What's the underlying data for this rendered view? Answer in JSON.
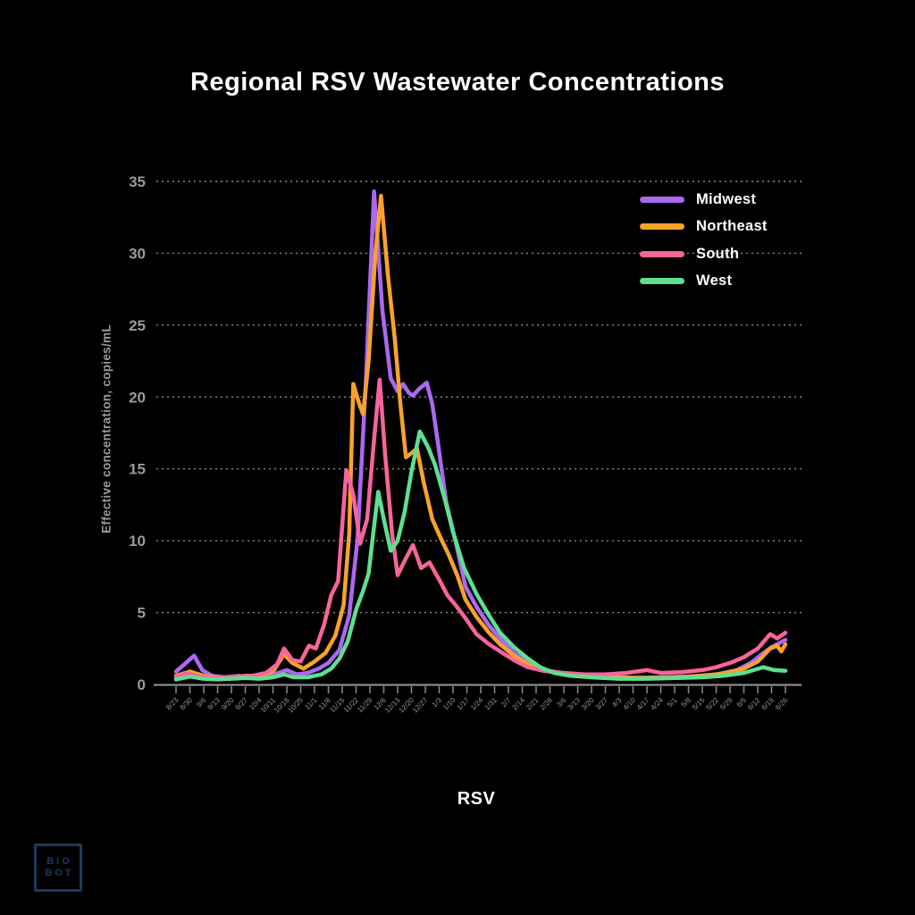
{
  "chart_data": {
    "type": "line",
    "title": "Regional RSV Wastewater Concentrations",
    "xlabel": "RSV",
    "ylabel": "Effective concentration, copies/mL",
    "ylim": [
      0,
      35
    ],
    "y_ticks": [
      0,
      5,
      10,
      15,
      20,
      25,
      30,
      35
    ],
    "grid": "horizontal-dashed",
    "legend_position": "top-right",
    "x_tick_labels": [
      "8/23",
      "8/30",
      "9/6",
      "9/13",
      "9/20",
      "9/27",
      "10/4",
      "10/11",
      "10/18",
      "10/25",
      "11/1",
      "11/8",
      "11/15",
      "11/22",
      "11/29",
      "12/6",
      "12/13",
      "12/20",
      "12/27",
      "1/3",
      "1/10",
      "1/17",
      "1/24",
      "1/31",
      "2/7",
      "2/14",
      "2/21",
      "2/28",
      "3/6",
      "3/13",
      "3/20",
      "3/27",
      "4/3",
      "4/10",
      "4/17",
      "4/24",
      "5/1",
      "5/8",
      "5/15",
      "5/22",
      "5/29",
      "6/5",
      "6/12",
      "6/19",
      "6/26"
    ],
    "series": [
      {
        "name": "Midwest",
        "color": "#ab68f0",
        "points": [
          [
            0,
            0.9
          ],
          [
            0.6,
            1.4
          ],
          [
            1.3,
            2.0
          ],
          [
            1.9,
            1.0
          ],
          [
            2.6,
            0.6
          ],
          [
            3.5,
            0.5
          ],
          [
            4.5,
            0.6
          ],
          [
            5.5,
            0.5
          ],
          [
            6.5,
            0.6
          ],
          [
            7.4,
            0.8
          ],
          [
            8,
            1.0
          ],
          [
            8.7,
            0.7
          ],
          [
            9.5,
            0.8
          ],
          [
            10.3,
            1.1
          ],
          [
            11,
            1.5
          ],
          [
            11.8,
            2.4
          ],
          [
            12.5,
            4.8
          ],
          [
            13.1,
            10
          ],
          [
            13.7,
            21
          ],
          [
            14.3,
            34.3
          ],
          [
            14.9,
            26
          ],
          [
            15.5,
            21.3
          ],
          [
            16,
            20.4
          ],
          [
            16.4,
            20.9
          ],
          [
            16.8,
            20.3
          ],
          [
            17.1,
            20.1
          ],
          [
            17.6,
            20.6
          ],
          [
            18.1,
            21.0
          ],
          [
            18.5,
            19.5
          ],
          [
            18.9,
            16.9
          ],
          [
            19.5,
            12.7
          ],
          [
            20.2,
            9.9
          ],
          [
            20.9,
            6.8
          ],
          [
            21.7,
            5.4
          ],
          [
            22.6,
            4.1
          ],
          [
            23.4,
            3.2
          ],
          [
            24.4,
            2.2
          ],
          [
            25.3,
            1.6
          ],
          [
            26.2,
            1.1
          ],
          [
            27.5,
            0.85
          ],
          [
            29,
            0.7
          ],
          [
            31,
            0.55
          ],
          [
            33,
            0.45
          ],
          [
            35,
            0.5
          ],
          [
            37,
            0.55
          ],
          [
            39,
            0.7
          ],
          [
            40.5,
            1.0
          ],
          [
            41.5,
            1.5
          ],
          [
            42.3,
            2.1
          ],
          [
            43,
            2.6
          ],
          [
            43.6,
            2.9
          ],
          [
            44,
            3.1
          ]
        ]
      },
      {
        "name": "Northeast",
        "color": "#f9a22b",
        "points": [
          [
            0,
            0.6
          ],
          [
            1,
            0.9
          ],
          [
            2,
            0.6
          ],
          [
            3,
            0.5
          ],
          [
            4,
            0.5
          ],
          [
            5,
            0.6
          ],
          [
            6,
            0.6
          ],
          [
            7,
            0.9
          ],
          [
            7.8,
            2.1
          ],
          [
            8.4,
            1.5
          ],
          [
            9.2,
            1.1
          ],
          [
            10,
            1.6
          ],
          [
            10.8,
            2.2
          ],
          [
            11.5,
            3.4
          ],
          [
            12.1,
            5.5
          ],
          [
            12.5,
            10.5
          ],
          [
            12.8,
            20.9
          ],
          [
            13.2,
            19.6
          ],
          [
            13.5,
            18.8
          ],
          [
            13.9,
            22.5
          ],
          [
            14.4,
            30
          ],
          [
            14.8,
            34.0
          ],
          [
            15.3,
            28.5
          ],
          [
            15.8,
            24
          ],
          [
            16.2,
            19.5
          ],
          [
            16.6,
            15.8
          ],
          [
            17,
            16.1
          ],
          [
            17.4,
            16.4
          ],
          [
            17.9,
            14
          ],
          [
            18.5,
            11.5
          ],
          [
            19.1,
            10.2
          ],
          [
            19.7,
            9
          ],
          [
            20.3,
            7.6
          ],
          [
            20.9,
            5.9
          ],
          [
            21.7,
            4.7
          ],
          [
            22.6,
            3.6
          ],
          [
            23.4,
            2.8
          ],
          [
            24.4,
            2.0
          ],
          [
            25.4,
            1.4
          ],
          [
            26.5,
            1.0
          ],
          [
            28,
            0.7
          ],
          [
            30,
            0.6
          ],
          [
            32,
            0.5
          ],
          [
            34,
            0.45
          ],
          [
            36,
            0.5
          ],
          [
            38,
            0.6
          ],
          [
            39.5,
            0.75
          ],
          [
            41,
            1.1
          ],
          [
            42,
            1.6
          ],
          [
            42.9,
            2.5
          ],
          [
            43.4,
            2.7
          ],
          [
            43.7,
            2.3
          ],
          [
            44,
            2.8
          ]
        ]
      },
      {
        "name": "South",
        "color": "#f7649c",
        "points": [
          [
            0,
            0.5
          ],
          [
            0.8,
            0.8
          ],
          [
            1.5,
            0.6
          ],
          [
            2.5,
            0.45
          ],
          [
            3.5,
            0.5
          ],
          [
            4.5,
            0.55
          ],
          [
            5.5,
            0.6
          ],
          [
            6.5,
            0.8
          ],
          [
            7.3,
            1.4
          ],
          [
            7.8,
            2.5
          ],
          [
            8.4,
            1.7
          ],
          [
            9,
            1.6
          ],
          [
            9.6,
            2.7
          ],
          [
            10.1,
            2.5
          ],
          [
            10.7,
            4.2
          ],
          [
            11.2,
            6.2
          ],
          [
            11.7,
            7.2
          ],
          [
            12.3,
            14.9
          ],
          [
            12.8,
            13.2
          ],
          [
            13.3,
            9.8
          ],
          [
            13.8,
            11.5
          ],
          [
            14.3,
            17
          ],
          [
            14.7,
            21.2
          ],
          [
            15.1,
            16
          ],
          [
            15.6,
            10.5
          ],
          [
            16,
            7.6
          ],
          [
            16.5,
            8.6
          ],
          [
            17.1,
            9.7
          ],
          [
            17.7,
            8.1
          ],
          [
            18.3,
            8.5
          ],
          [
            18.7,
            7.8
          ],
          [
            19,
            7.3
          ],
          [
            19.6,
            6.2
          ],
          [
            20.2,
            5.5
          ],
          [
            20.9,
            4.6
          ],
          [
            21.7,
            3.5
          ],
          [
            22.6,
            2.8
          ],
          [
            23.4,
            2.3
          ],
          [
            24.4,
            1.7
          ],
          [
            25.4,
            1.2
          ],
          [
            26.5,
            0.95
          ],
          [
            28,
            0.8
          ],
          [
            29.5,
            0.7
          ],
          [
            31,
            0.7
          ],
          [
            32.5,
            0.8
          ],
          [
            34,
            1.0
          ],
          [
            35,
            0.8
          ],
          [
            36.5,
            0.85
          ],
          [
            38,
            1.0
          ],
          [
            39,
            1.2
          ],
          [
            40,
            1.5
          ],
          [
            41,
            1.9
          ],
          [
            42,
            2.5
          ],
          [
            42.9,
            3.5
          ],
          [
            43.4,
            3.2
          ],
          [
            44,
            3.6
          ]
        ]
      },
      {
        "name": "West",
        "color": "#5fdf90",
        "points": [
          [
            0,
            0.35
          ],
          [
            1,
            0.55
          ],
          [
            2,
            0.4
          ],
          [
            3,
            0.35
          ],
          [
            4,
            0.4
          ],
          [
            5,
            0.45
          ],
          [
            6,
            0.4
          ],
          [
            7,
            0.5
          ],
          [
            7.8,
            0.7
          ],
          [
            8.5,
            0.5
          ],
          [
            9.5,
            0.5
          ],
          [
            10.5,
            0.7
          ],
          [
            11.2,
            1.1
          ],
          [
            11.8,
            1.8
          ],
          [
            12.4,
            3.0
          ],
          [
            13,
            5.2
          ],
          [
            13.5,
            6.5
          ],
          [
            13.9,
            7.7
          ],
          [
            14.3,
            11
          ],
          [
            14.6,
            13.4
          ],
          [
            15,
            11.5
          ],
          [
            15.5,
            9.3
          ],
          [
            16,
            10
          ],
          [
            16.5,
            12
          ],
          [
            17,
            14.8
          ],
          [
            17.6,
            17.6
          ],
          [
            18.2,
            16.5
          ],
          [
            18.7,
            15.3
          ],
          [
            19.4,
            12.9
          ],
          [
            20,
            10.6
          ],
          [
            20.8,
            8.1
          ],
          [
            21.7,
            6.3
          ],
          [
            22.6,
            4.8
          ],
          [
            23.4,
            3.6
          ],
          [
            24.4,
            2.6
          ],
          [
            25.4,
            1.8
          ],
          [
            26.3,
            1.2
          ],
          [
            27.3,
            0.8
          ],
          [
            28.5,
            0.6
          ],
          [
            30,
            0.5
          ],
          [
            32,
            0.4
          ],
          [
            34,
            0.4
          ],
          [
            36,
            0.45
          ],
          [
            38,
            0.5
          ],
          [
            39.5,
            0.6
          ],
          [
            41,
            0.8
          ],
          [
            42.4,
            1.2
          ],
          [
            43.2,
            1.0
          ],
          [
            44,
            0.95
          ]
        ]
      }
    ]
  },
  "colors": {
    "background": "#000000",
    "title_text": "#ffffff",
    "axis_text": "#9a9aa0",
    "gridline": "#8c8c8c",
    "logo": "#1c3a5e"
  },
  "logo": {
    "line1": "BIO",
    "line2": "BOT"
  }
}
